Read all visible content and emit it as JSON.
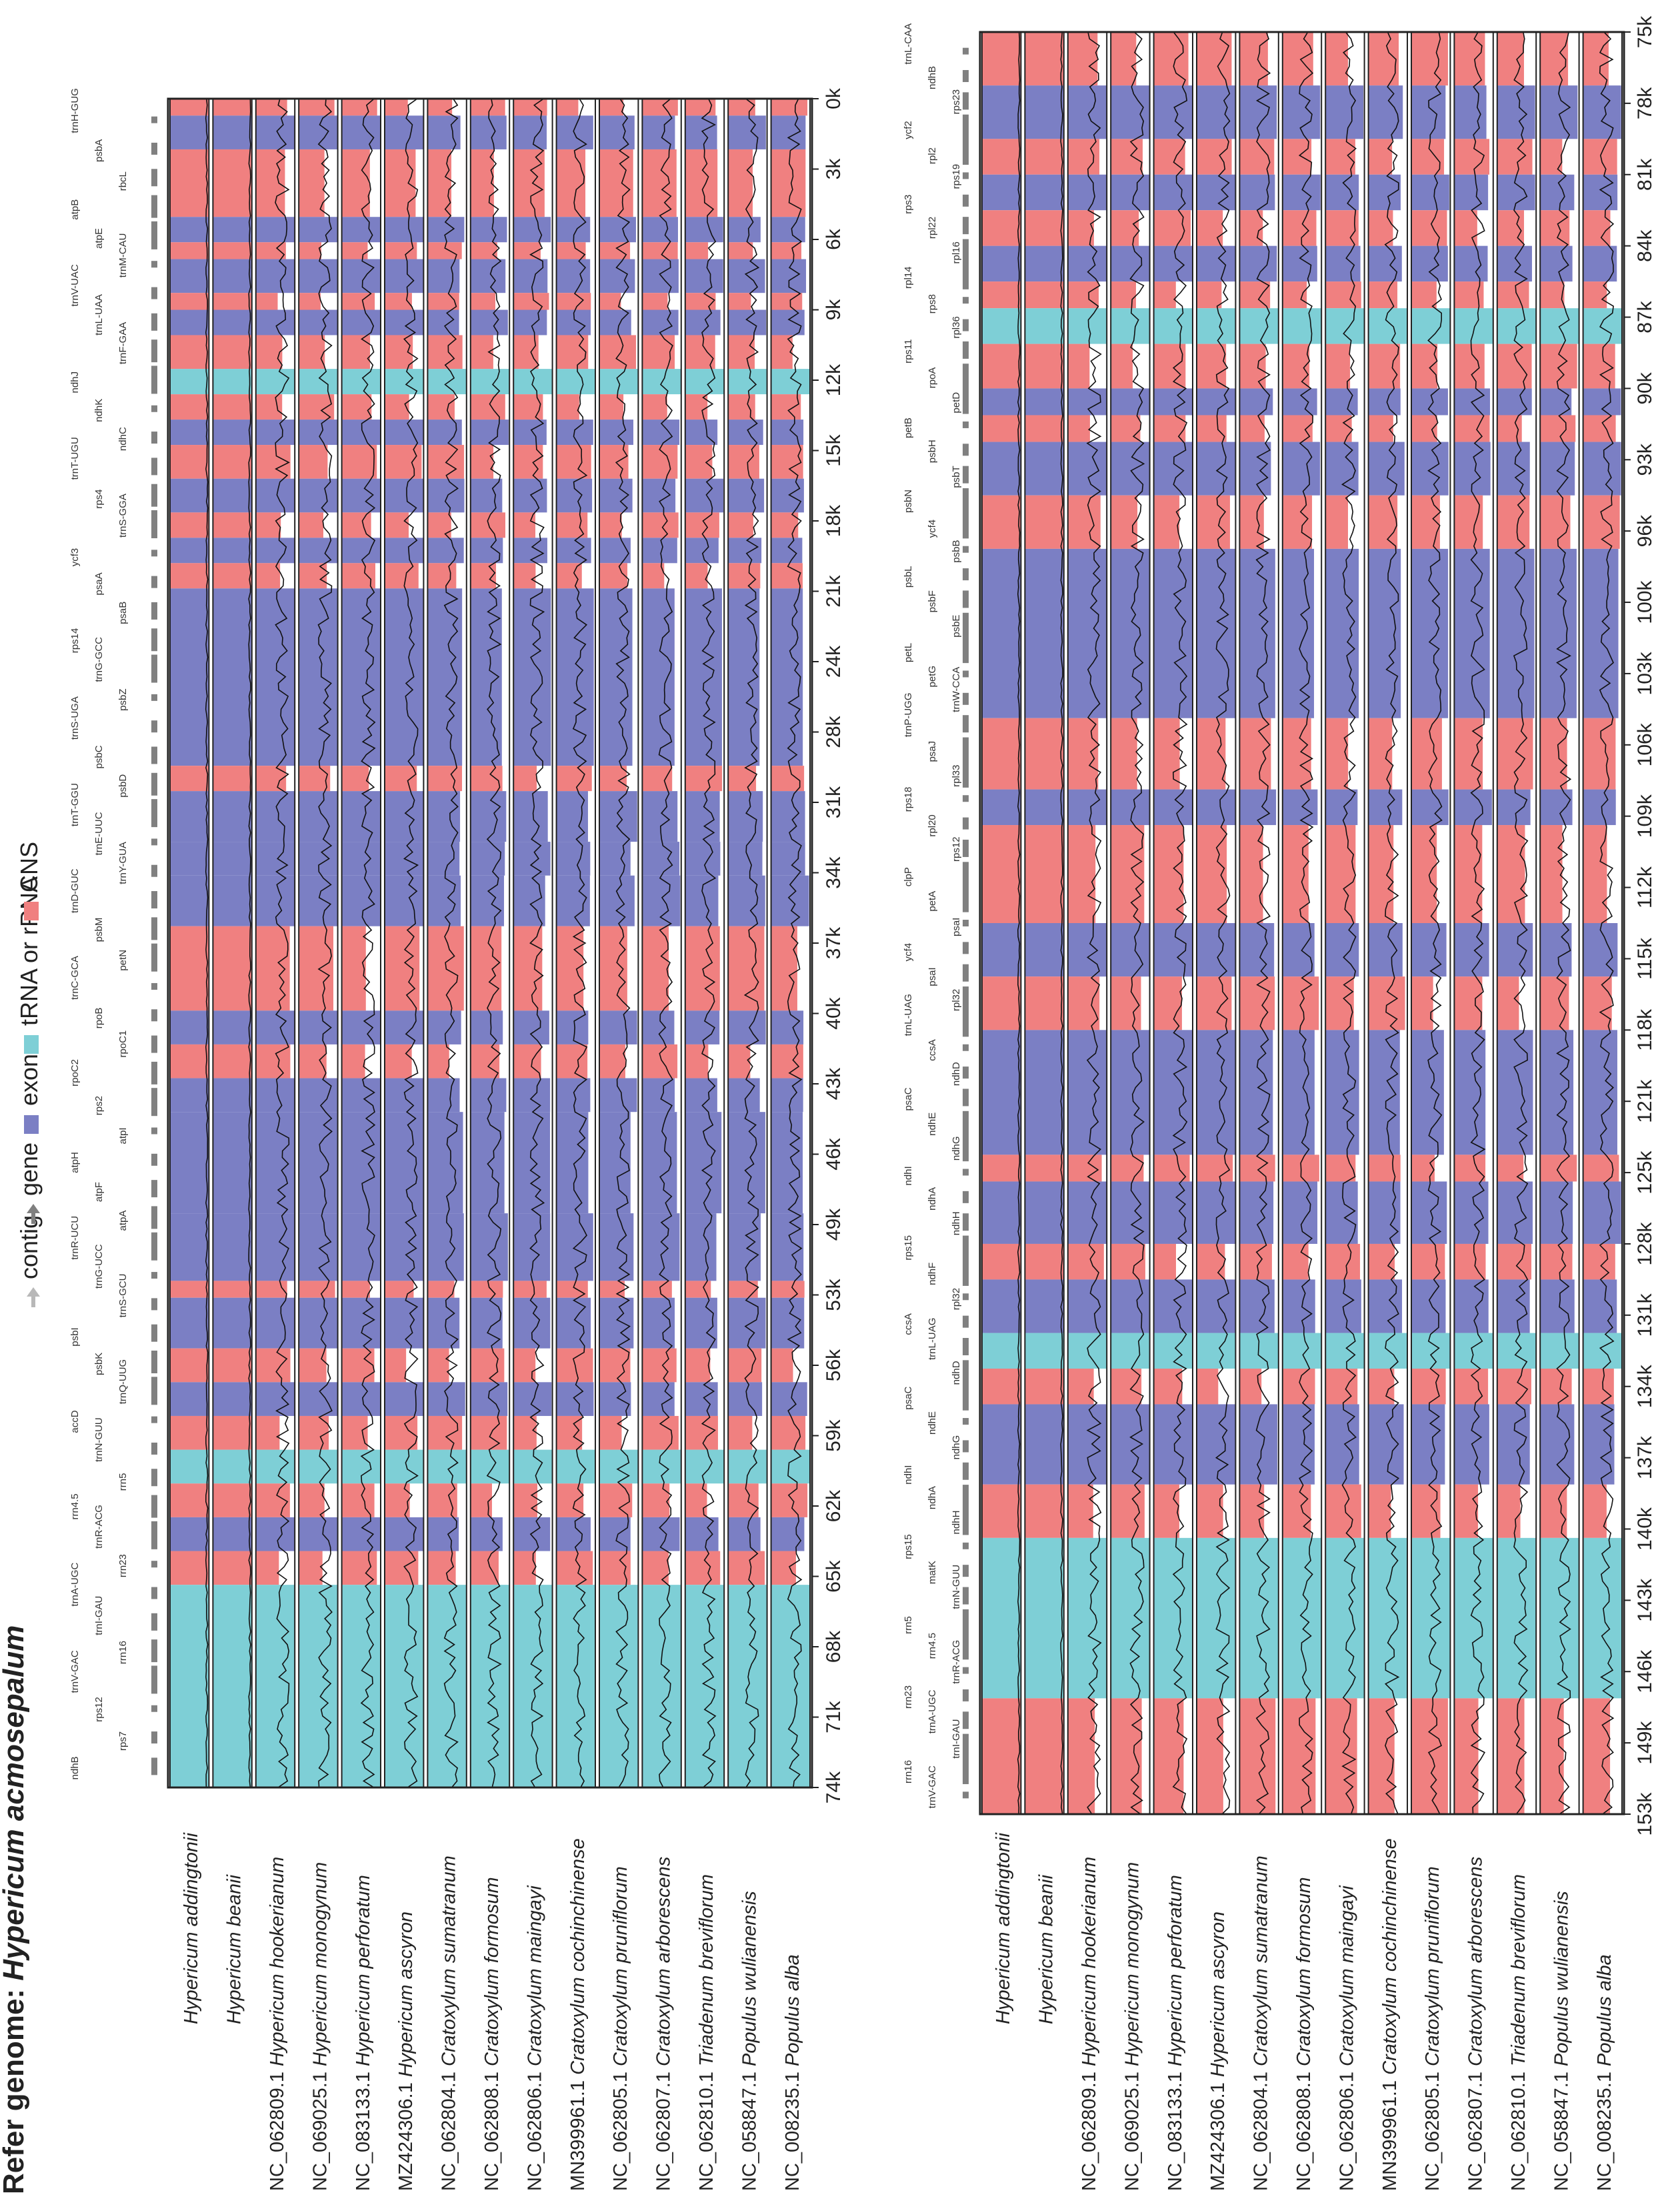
{
  "title_prefix": "Refer genome: ",
  "title_species": "Hypericum acmosepalum",
  "colors": {
    "exon": "#7b7fc4",
    "cns": "#f08080",
    "rna": "#7ecfd6",
    "contig": "#b8b8b8",
    "gene": "#808080",
    "frame": "#222222",
    "line": "#111111"
  },
  "legend": [
    {
      "label": "contig",
      "kind": "contig",
      "color": "#b8b8b8"
    },
    {
      "label": "gene",
      "kind": "gene",
      "color": "#808080"
    },
    {
      "label": "exon",
      "kind": "box",
      "color": "#7b7fc4"
    },
    {
      "label": "tRNA or rRNA",
      "kind": "box",
      "color": "#7ecfd6"
    },
    {
      "label": "CNS",
      "kind": "box",
      "color": "#f08080"
    }
  ],
  "genomes": [
    {
      "accession": "",
      "species": "Hypericum addingtonii"
    },
    {
      "accession": "",
      "species": "Hypericum beanii"
    },
    {
      "accession": "NC_062809.1",
      "species": "Hypericum hookerianum"
    },
    {
      "accession": "NC_069025.1",
      "species": "Hypericum monogynum"
    },
    {
      "accession": "NC_083133.1",
      "species": "Hypericum perforatum"
    },
    {
      "accession": "MZ424306.1",
      "species": "Hypericum ascyron"
    },
    {
      "accession": "NC_062804.1",
      "species": "Cratoxylum sumatranum"
    },
    {
      "accession": "NC_062808.1",
      "species": "Cratoxylum formosum"
    },
    {
      "accession": "NC_062806.1",
      "species": "Cratoxylum maingayi"
    },
    {
      "accession": "MN399961.1",
      "species": "Cratoxylum cochinchinense"
    },
    {
      "accession": "NC_062805.1",
      "species": "Cratoxylum pruniflorum"
    },
    {
      "accession": "NC_062807.1",
      "species": "Cratoxylum arborescens"
    },
    {
      "accession": "NC_062810.1",
      "species": "Triadenum breviflorum"
    },
    {
      "accession": "NC_058847.1",
      "species": "Populus wulianensis"
    },
    {
      "accession": "NC_008235.1",
      "species": "Populus alba"
    }
  ],
  "panels": [
    {
      "ticks": [
        "0k",
        "3k",
        "6k",
        "9k",
        "12k",
        "15k",
        "18k",
        "21k",
        "24k",
        "28k",
        "31k",
        "34k",
        "37k",
        "40k",
        "43k",
        "46k",
        "49k",
        "53k",
        "56k",
        "59k",
        "62k",
        "65k",
        "68k",
        "71k",
        "74k"
      ],
      "genes": [
        "trnH-GUG",
        "psbA",
        "rbcL",
        "atpB",
        "atpE",
        "trnM-CAU",
        "trnV-UAC",
        "trnL-UAA",
        "trnF-GAA",
        "ndhJ",
        "ndhK",
        "ndhC",
        "trnT-UGU",
        "rps4",
        "trnS-GGA",
        "ycf3",
        "psaA",
        "psaB",
        "rps14",
        "trnG-GCC",
        "psbZ",
        "trnS-UGA",
        "psbC",
        "psbD",
        "trnT-GGU",
        "trnE-UUC",
        "trnY-GUA",
        "trnD-GUC",
        "psbM",
        "petN",
        "trnC-GCA",
        "rpoB",
        "rpoC1",
        "rpoC2",
        "rps2",
        "atpI",
        "atpH",
        "atpF",
        "atpA",
        "trnR-UCU",
        "trnG-UCC",
        "trnS-GCU",
        "psbI",
        "psbK",
        "trnQ-UUG",
        "accD",
        "trnN-GUU",
        "rrn5",
        "rrn4.5",
        "trnR-ACG",
        "rrn23",
        "trnA-UGC",
        "trnI-GAU",
        "rrn16",
        "trnV-GAC",
        "rps12",
        "rps7",
        "ndhB"
      ]
    },
    {
      "ticks": [
        "75k",
        "78k",
        "81k",
        "84k",
        "87k",
        "90k",
        "93k",
        "96k",
        "100k",
        "103k",
        "106k",
        "109k",
        "112k",
        "115k",
        "118k",
        "121k",
        "125k",
        "128k",
        "131k",
        "134k",
        "137k",
        "140k",
        "143k",
        "146k",
        "149k",
        "153k"
      ],
      "genes": [
        "trnL-CAA",
        "ndhB",
        "rps23",
        "ycf2",
        "rpl2",
        "rps19",
        "rps3",
        "rpl22",
        "rpl16",
        "rpl14",
        "rps8",
        "rpl36",
        "rps11",
        "rpoA",
        "petD",
        "petB",
        "psbH",
        "psbT",
        "psbN",
        "ycf4",
        "psbB",
        "psbL",
        "psbF",
        "psbE",
        "petL",
        "petG",
        "trnW-CCA",
        "trnP-UGG",
        "psaJ",
        "rpl33",
        "rps18",
        "rpl20",
        "rps12",
        "clpP",
        "petA",
        "psaI",
        "ycf4",
        "psaI",
        "rpl32",
        "trnL-UAG",
        "ccsA",
        "ndhD",
        "psaC",
        "ndhE",
        "ndhG",
        "ndhI",
        "ndhA",
        "ndhH",
        "rps15",
        "ndhF",
        "rpl32",
        "ccsA",
        "trnL-UAG",
        "ndhD",
        "psaC",
        "ndhE",
        "ndhG",
        "ndhI",
        "ndhA",
        "ndhH",
        "rps15",
        "matK",
        "trnN-GUU",
        "rrn5",
        "rrn4.5",
        "trnR-ACG",
        "rrn23",
        "trnA-UGC",
        "trnI-GAU",
        "rrn16",
        "trnV-GAC"
      ]
    }
  ]
}
